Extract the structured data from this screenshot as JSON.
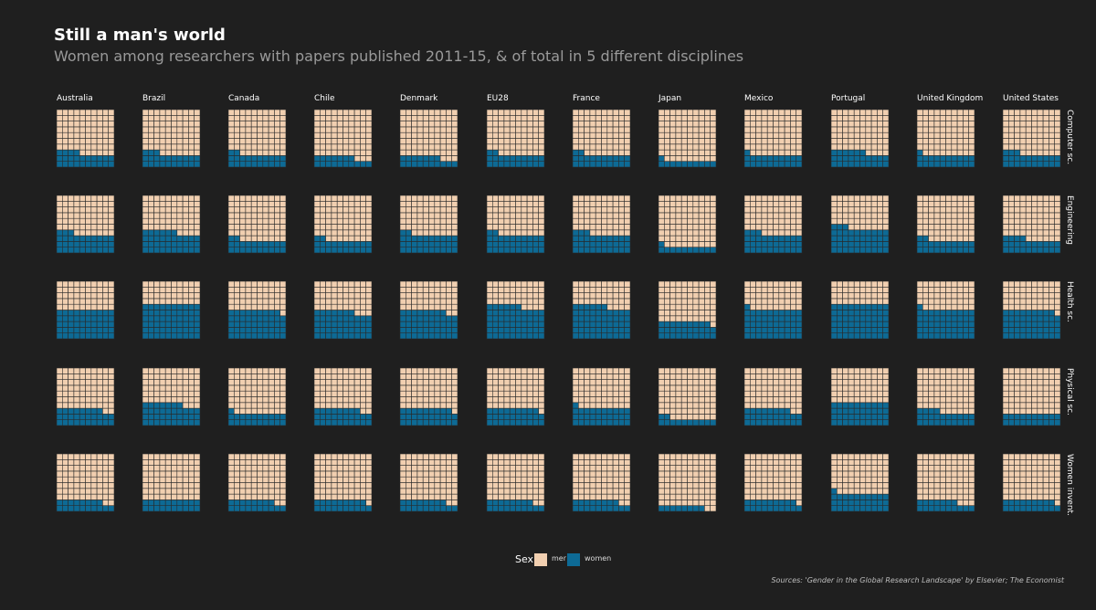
{
  "title": "Still a man's world",
  "subtitle": "Women among researchers with papers published 2011-15, & of total in 5 different disciplines",
  "source": "Sources: 'Gender in the Global Research Landscape' by Elsevier; The Economist",
  "legend": {
    "title": "Sex",
    "items": [
      "men",
      "women"
    ]
  },
  "colors": {
    "background": "#1f1f1f",
    "men": "#f1cfb0",
    "women": "#0d6a95",
    "gridline": "#2a2a2a"
  },
  "chart_data": {
    "type": "waffle",
    "unit": "women per 100 researchers (10x10 grid)",
    "countries": [
      "Australia",
      "Brazil",
      "Canada",
      "Chile",
      "Denmark",
      "EU28",
      "France",
      "Japan",
      "Mexico",
      "Portugal",
      "United Kingdom",
      "United States"
    ],
    "disciplines": [
      "Computer sc.",
      "Engineering",
      "Health sc.",
      "Physical sc.",
      "Women invent."
    ],
    "values": [
      [
        24,
        23,
        22,
        17,
        17,
        22,
        22,
        11,
        21,
        26,
        21,
        23
      ],
      [
        33,
        36,
        22,
        22,
        32,
        32,
        33,
        11,
        33,
        43,
        22,
        24
      ],
      [
        50,
        60,
        49,
        47,
        48,
        56,
        56,
        29,
        51,
        60,
        51,
        49
      ],
      [
        28,
        37,
        21,
        28,
        29,
        29,
        31,
        12,
        28,
        40,
        24,
        20
      ],
      [
        18,
        20,
        18,
        19,
        18,
        18,
        18,
        8,
        19,
        31,
        17,
        19
      ]
    ]
  }
}
